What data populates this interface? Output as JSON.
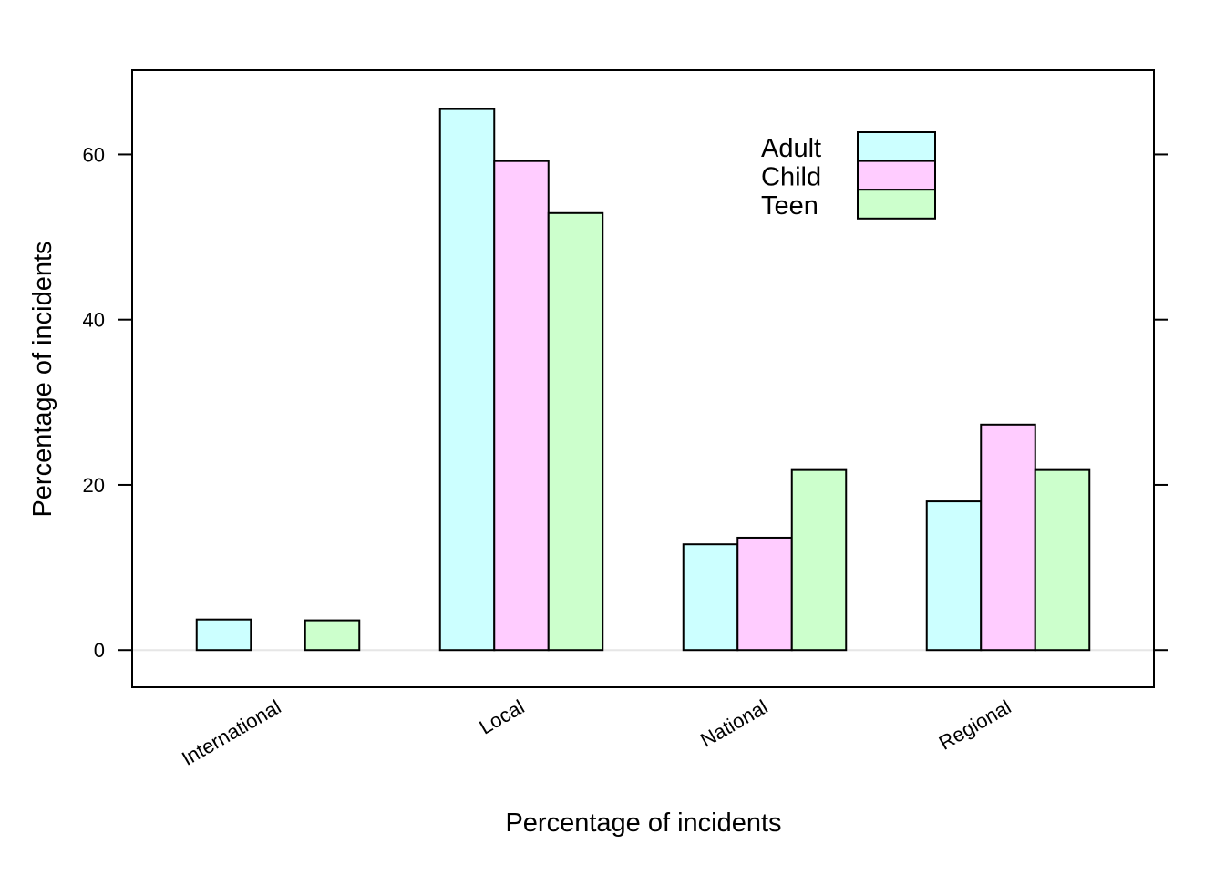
{
  "chart_data": {
    "type": "bar",
    "categories": [
      "International",
      "Local",
      "National",
      "Regional"
    ],
    "series": [
      {
        "name": "Adult",
        "color": "#ccffff",
        "values": [
          3.7,
          65.5,
          12.8,
          18.0
        ]
      },
      {
        "name": "Child",
        "color": "#ffccff",
        "values": [
          0,
          59.2,
          13.6,
          27.3
        ]
      },
      {
        "name": "Teen",
        "color": "#ccffcc",
        "values": [
          3.6,
          52.9,
          21.8,
          21.8
        ]
      }
    ],
    "title": "",
    "xlabel": "Percentage of incidents",
    "ylabel": "Percentage of incidents",
    "ylim": [
      -4.5,
      70.2
    ],
    "yticks": [
      0,
      20,
      40,
      60
    ],
    "legend_position": "top-right",
    "grid": false,
    "reference_line_y": 0,
    "reference_line_color": "#e6e6e6"
  }
}
